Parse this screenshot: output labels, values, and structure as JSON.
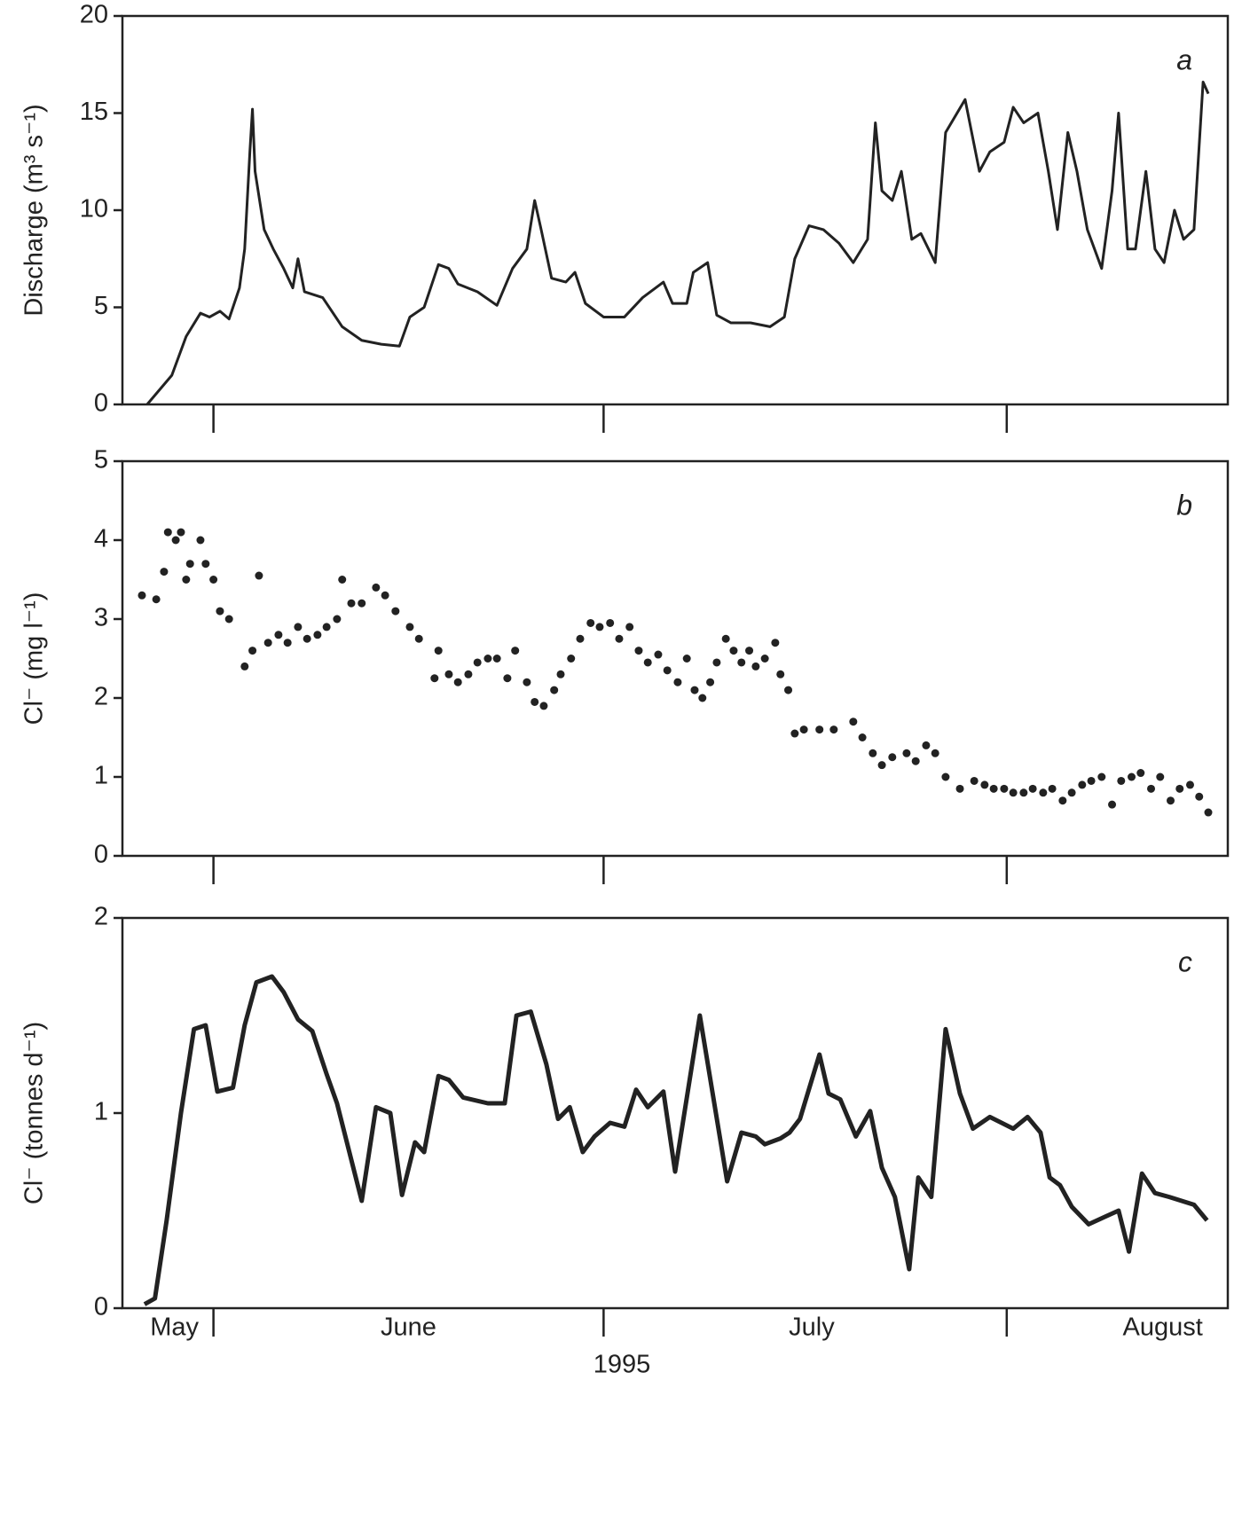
{
  "x_axis": {
    "xlim": [
      145,
      230
    ],
    "month_starts": [
      152,
      182,
      213
    ],
    "month_labels": [
      {
        "value": 149,
        "label": "May"
      },
      {
        "value": 167,
        "label": "June"
      },
      {
        "value": 198,
        "label": "July"
      },
      {
        "value": 225,
        "label": "August"
      }
    ],
    "xlabel": "1995"
  },
  "chart_data": [
    {
      "type": "line",
      "annotation": "a",
      "ylabel": "Discharge (m³ s⁻¹)",
      "color": "#222",
      "line_width": 3,
      "ylim": [
        0,
        20
      ],
      "yticks": [
        0,
        5,
        10,
        15,
        20
      ],
      "x": [
        146.9,
        148.8,
        149.9,
        151,
        151.7,
        152.5,
        153.2,
        154,
        154.4,
        154.8,
        155,
        155.2,
        155.9,
        156.6,
        157.4,
        158.1,
        158.5,
        159,
        160.4,
        161.9,
        163.4,
        164.9,
        166.3,
        167.1,
        168.2,
        169.3,
        170.1,
        170.8,
        172.3,
        173.8,
        175,
        176.1,
        176.7,
        177.2,
        178,
        179.1,
        179.8,
        180.6,
        182,
        183.6,
        185,
        186.6,
        187.3,
        188.4,
        188.9,
        190,
        190.7,
        191.8,
        193.3,
        194.8,
        195.9,
        196.7,
        197.8,
        198.9,
        200.1,
        201.2,
        202.3,
        202.9,
        203.4,
        204.2,
        204.9,
        205.7,
        206.4,
        207.5,
        208.3,
        209.8,
        210.9,
        211.7,
        212.8,
        213.5,
        214.3,
        215.4,
        216.2,
        216.9,
        217.7,
        218.4,
        219.2,
        220.3,
        221.1,
        221.6,
        222.3,
        222.9,
        223.7,
        224.4,
        225.1,
        225.9,
        226.6,
        227.4,
        228.1,
        228.5
      ],
      "values": [
        0,
        1.5,
        3.5,
        4.7,
        4.5,
        4.8,
        4.4,
        6,
        8,
        13,
        15.2,
        12,
        9,
        8,
        7,
        6,
        7.5,
        5.8,
        5.5,
        4,
        3.3,
        3.1,
        3,
        4.5,
        5,
        7.2,
        7,
        6.2,
        5.8,
        5.1,
        7,
        8,
        10.5,
        9,
        6.5,
        6.3,
        6.8,
        5.2,
        4.5,
        4.5,
        5.5,
        6.3,
        5.2,
        5.2,
        6.8,
        7.3,
        4.6,
        4.2,
        4.2,
        4,
        4.5,
        7.5,
        9.2,
        9,
        8.3,
        7.3,
        8.5,
        14.5,
        11,
        10.5,
        12,
        8.5,
        8.8,
        7.3,
        14,
        15.7,
        12,
        13,
        13.5,
        15.3,
        14.5,
        15,
        12,
        9,
        14,
        12,
        9,
        7,
        11,
        15,
        8,
        8,
        12,
        8,
        7.3,
        10,
        8.5,
        9,
        16.6,
        16
      ]
    },
    {
      "type": "scatter",
      "annotation": "b",
      "ylabel": "Cl⁻ (mg l⁻¹)",
      "color": "#222",
      "ylim": [
        0,
        5
      ],
      "yticks": [
        0,
        1,
        2,
        3,
        4,
        5
      ],
      "x": [
        146.5,
        147.6,
        148.2,
        148.5,
        149.1,
        149.5,
        149.9,
        150.2,
        151,
        151.4,
        152,
        152.5,
        153.2,
        154.4,
        155,
        155.5,
        156.2,
        157,
        157.7,
        158.5,
        159.2,
        160,
        160.7,
        161.5,
        161.9,
        162.6,
        163.4,
        164.5,
        165.2,
        166,
        167.1,
        167.8,
        169,
        169.3,
        170.1,
        170.8,
        171.6,
        172.3,
        173.1,
        173.8,
        174.6,
        175.2,
        176.1,
        176.7,
        177.4,
        178.2,
        178.7,
        179.5,
        180.2,
        181,
        181.7,
        182.5,
        183.2,
        184,
        184.7,
        185.4,
        186.2,
        186.9,
        187.7,
        188.4,
        189,
        189.6,
        190.2,
        190.7,
        191.4,
        192,
        192.6,
        193.2,
        193.7,
        194.4,
        195.2,
        195.6,
        196.2,
        196.7,
        197.4,
        198.6,
        199.7,
        201.2,
        201.9,
        202.7,
        203.4,
        204.2,
        205.3,
        206,
        206.8,
        207.5,
        208.3,
        209.4,
        210.5,
        211.3,
        212,
        212.8,
        213.5,
        214.3,
        215,
        215.8,
        216.5,
        217.3,
        218,
        218.8,
        219.5,
        220.3,
        221.1,
        221.8,
        222.6,
        223.3,
        224.1,
        224.8,
        225.6,
        226.3,
        227.1,
        227.8,
        228.5
      ],
      "values": [
        3.3,
        3.25,
        3.6,
        4.1,
        4,
        4.1,
        3.5,
        3.7,
        4,
        3.7,
        3.5,
        3.1,
        3,
        2.4,
        2.6,
        3.55,
        2.7,
        2.8,
        2.7,
        2.9,
        2.75,
        2.8,
        2.9,
        3,
        3.5,
        3.2,
        3.2,
        3.4,
        3.3,
        3.1,
        2.9,
        2.75,
        2.25,
        2.6,
        2.3,
        2.2,
        2.3,
        2.45,
        2.5,
        2.5,
        2.25,
        2.6,
        2.2,
        1.95,
        1.9,
        2.1,
        2.3,
        2.5,
        2.75,
        2.95,
        2.9,
        2.95,
        2.75,
        2.9,
        2.6,
        2.45,
        2.55,
        2.35,
        2.2,
        2.5,
        2.1,
        2,
        2.2,
        2.45,
        2.75,
        2.6,
        2.45,
        2.6,
        2.4,
        2.5,
        2.7,
        2.3,
        2.1,
        1.55,
        1.6,
        1.6,
        1.6,
        1.7,
        1.5,
        1.3,
        1.15,
        1.25,
        1.3,
        1.2,
        1.4,
        1.3,
        1,
        0.85,
        0.95,
        0.9,
        0.85,
        0.85,
        0.8,
        0.8,
        0.85,
        0.8,
        0.85,
        0.7,
        0.8,
        0.9,
        0.95,
        1,
        0.65,
        0.95,
        1,
        1.05,
        0.85,
        1,
        0.7,
        0.85,
        0.9,
        0.75,
        0.55
      ]
    },
    {
      "type": "line",
      "annotation": "c",
      "ylabel": "Cl⁻ (tonnes d⁻¹)",
      "color": "#222",
      "line_width": 5,
      "ylim": [
        0,
        2
      ],
      "yticks": [
        0,
        1,
        2
      ],
      "x": [
        146.7,
        147.5,
        148.4,
        149.5,
        150.5,
        151.4,
        152.3,
        153.5,
        154.4,
        155.3,
        156.5,
        157.4,
        158.5,
        159.6,
        160.7,
        161.5,
        163.4,
        164.5,
        165.6,
        166.5,
        167.5,
        168.2,
        169.3,
        170.1,
        171.2,
        173.1,
        174.4,
        175.3,
        176.4,
        177.6,
        178.5,
        179.4,
        180.4,
        181.3,
        182.5,
        183.6,
        184.5,
        185.4,
        186.6,
        187.5,
        189.4,
        191.5,
        192.6,
        193.7,
        194.4,
        195.6,
        196.3,
        197.1,
        198.6,
        199.3,
        200.2,
        201.4,
        202.5,
        203.4,
        204.4,
        205.5,
        206.2,
        207.2,
        208.3,
        209.4,
        210.4,
        211.7,
        213.5,
        214.6,
        215.6,
        216.3,
        217.1,
        218,
        219.3,
        220.6,
        221.6,
        222.4,
        223.4,
        224.4,
        225.5,
        227.4,
        228.4
      ],
      "values": [
        0.02,
        0.05,
        0.45,
        1,
        1.43,
        1.45,
        1.11,
        1.13,
        1.45,
        1.67,
        1.7,
        1.62,
        1.48,
        1.42,
        1.2,
        1.05,
        0.55,
        1.03,
        1,
        0.58,
        0.85,
        0.8,
        1.19,
        1.17,
        1.08,
        1.05,
        1.05,
        1.5,
        1.52,
        1.25,
        0.97,
        1.03,
        0.8,
        0.88,
        0.95,
        0.93,
        1.12,
        1.03,
        1.11,
        0.7,
        1.5,
        0.65,
        0.9,
        0.88,
        0.84,
        0.87,
        0.9,
        0.97,
        1.3,
        1.1,
        1.07,
        0.88,
        1.01,
        0.72,
        0.57,
        0.2,
        0.67,
        0.57,
        1.43,
        1.1,
        0.92,
        0.98,
        0.92,
        0.98,
        0.9,
        0.67,
        0.63,
        0.52,
        0.43,
        0.47,
        0.5,
        0.29,
        0.69,
        0.59,
        0.57,
        0.53,
        0.45
      ]
    }
  ]
}
